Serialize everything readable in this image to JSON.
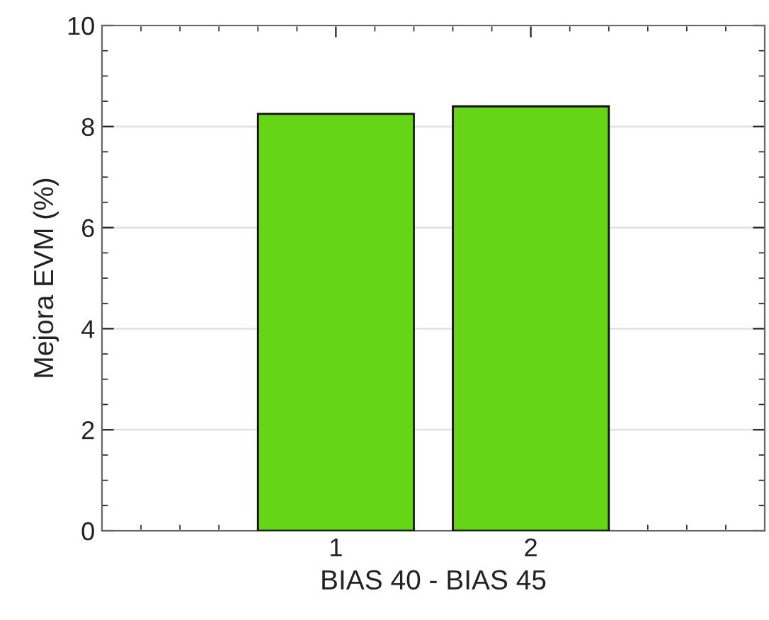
{
  "chart_data": {
    "type": "bar",
    "xlabel": "BIAS 40 - BIAS 45",
    "ylabel": "Mejora EVM (%)",
    "x": [
      1,
      2
    ],
    "values": [
      8.25,
      8.4
    ],
    "color": "#66d516",
    "xlim": [
      -0.2,
      3.2
    ],
    "xticks": [
      1,
      2
    ],
    "ylim": [
      0,
      10
    ],
    "yticks": [
      0,
      2,
      4,
      6,
      8,
      10
    ],
    "grid": "y",
    "legend": false
  }
}
